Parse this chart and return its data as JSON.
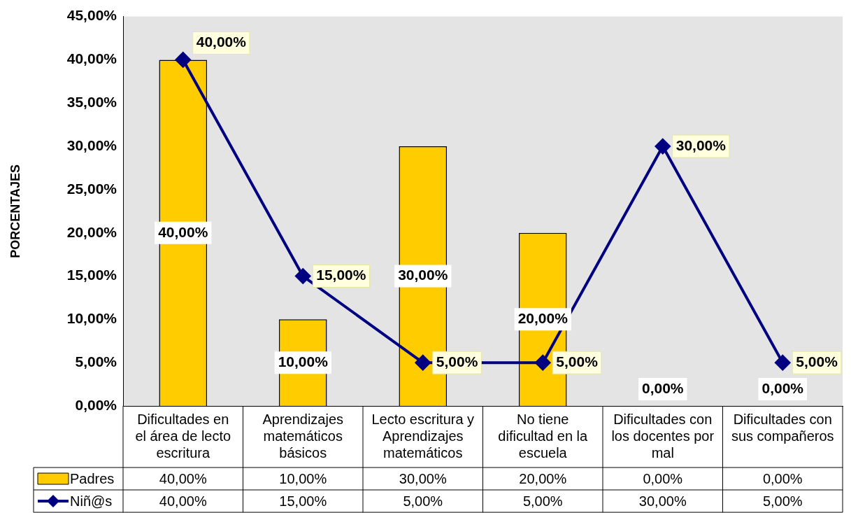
{
  "chart_data": {
    "type": "bar",
    "ylabel": "PORCENTAJES",
    "categories": [
      "Dificultades en el área de lecto escritura",
      "Aprendizajes matemáticos básicos",
      "Lecto escritura y Aprendizajes matemáticos",
      "No tiene dificultad en la escuela",
      "Dificultades con los docentes por mal",
      "Dificultades con sus compañeros"
    ],
    "series": [
      {
        "name": "Padres",
        "type": "bar",
        "color": "#ffcc00",
        "values": [
          40,
          10,
          30,
          20,
          0,
          0
        ],
        "value_labels": [
          "40,00%",
          "10,00%",
          "30,00%",
          "20,00%",
          "0,00%",
          "0,00%"
        ]
      },
      {
        "name": "Niñ@s",
        "type": "line",
        "color": "#000080",
        "values": [
          40,
          15,
          5,
          5,
          30,
          5
        ],
        "value_labels": [
          "40,00%",
          "15,00%",
          "5,00%",
          "5,00%",
          "30,00%",
          "5,00%"
        ]
      }
    ],
    "ylim": [
      0,
      45
    ],
    "yticks": [
      {
        "value": 0,
        "label": "0,00%"
      },
      {
        "value": 5,
        "label": "5,00%"
      },
      {
        "value": 10,
        "label": "10,00%"
      },
      {
        "value": 15,
        "label": "15,00%"
      },
      {
        "value": 20,
        "label": "20,00%"
      },
      {
        "value": 25,
        "label": "25,00%"
      },
      {
        "value": 30,
        "label": "30,00%"
      },
      {
        "value": 35,
        "label": "35,00%"
      },
      {
        "value": 40,
        "label": "40,00%"
      },
      {
        "value": 45,
        "label": "45,00%"
      }
    ],
    "grid": false,
    "legend": "bottom left",
    "marker": "diamond",
    "line_style": "solid"
  }
}
